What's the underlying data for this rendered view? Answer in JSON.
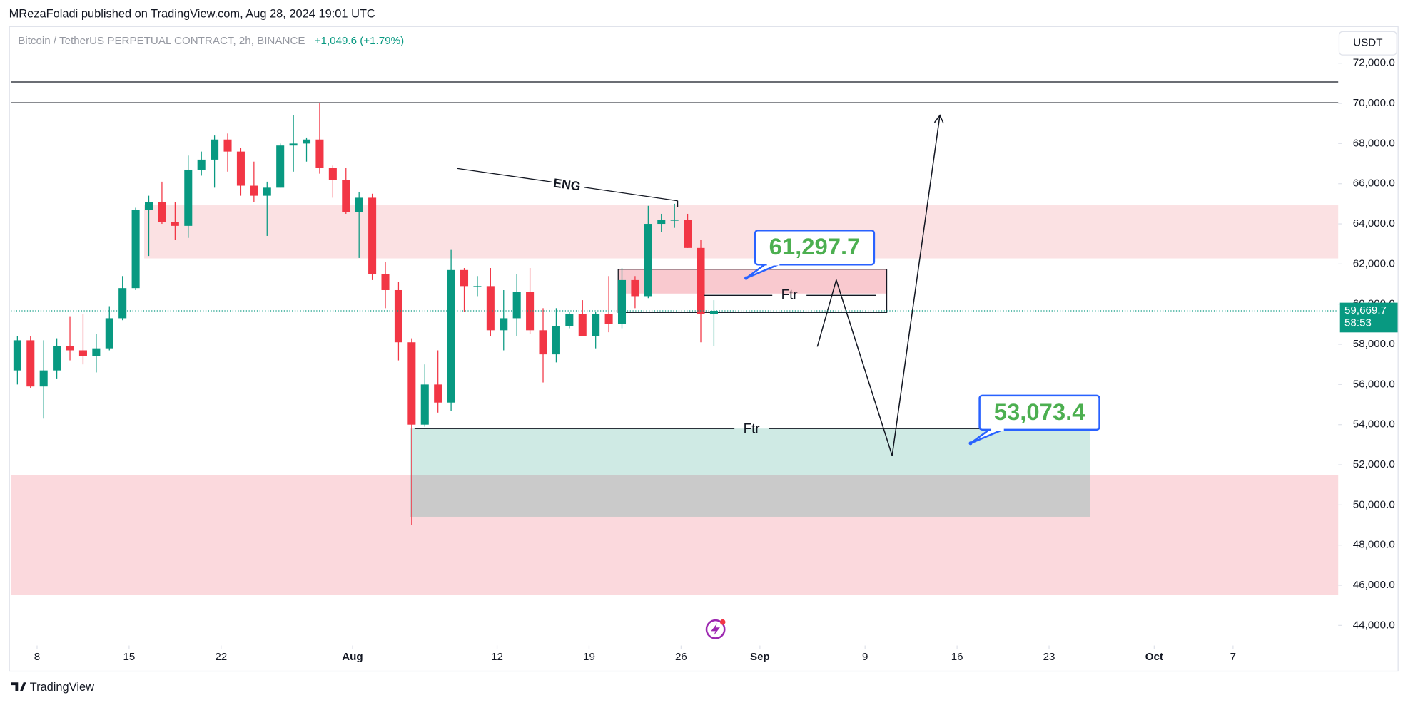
{
  "header": {
    "publisher": "MRezaFoladi published on TradingView.com, Aug 28, 2024 19:01 UTC"
  },
  "chart_data": {
    "type": "candlestick",
    "symbol": "Bitcoin / TetherUS PERPETUAL CONTRACT, 2h, BINANCE",
    "change": "+1,049.6 (+1.79%)",
    "currency": "USDT",
    "up_color": "#089981",
    "down_color": "#f23645",
    "x": [
      "2024-07-06",
      "2024-07-07",
      "2024-07-08",
      "2024-07-09",
      "2024-07-10",
      "2024-07-11",
      "2024-07-12",
      "2024-07-13",
      "2024-07-14",
      "2024-07-15",
      "2024-07-16",
      "2024-07-17",
      "2024-07-18",
      "2024-07-19",
      "2024-07-20",
      "2024-07-21",
      "2024-07-22",
      "2024-07-23",
      "2024-07-24",
      "2024-07-25",
      "2024-07-26",
      "2024-07-27",
      "2024-07-28",
      "2024-07-29",
      "2024-07-30",
      "2024-07-31",
      "2024-08-01",
      "2024-08-02",
      "2024-08-03",
      "2024-08-04",
      "2024-08-05",
      "2024-08-06",
      "2024-08-07",
      "2024-08-08",
      "2024-08-09",
      "2024-08-10",
      "2024-08-11",
      "2024-08-12",
      "2024-08-13",
      "2024-08-14",
      "2024-08-15",
      "2024-08-16",
      "2024-08-17",
      "2024-08-18",
      "2024-08-19",
      "2024-08-20",
      "2024-08-21",
      "2024-08-22",
      "2024-08-23",
      "2024-08-24",
      "2024-08-25",
      "2024-08-26",
      "2024-08-27",
      "2024-08-28"
    ],
    "open": [
      56700,
      58200,
      55900,
      56700,
      57900,
      57700,
      57400,
      57800,
      59300,
      60800,
      64700,
      65100,
      64100,
      63900,
      66700,
      67200,
      68200,
      67600,
      65900,
      65400,
      65800,
      67900,
      68000,
      68200,
      66800,
      66200,
      64600,
      65300,
      61500,
      60700,
      58100,
      54000,
      56000,
      55100,
      61700,
      60900,
      60900,
      58700,
      59300,
      60600,
      58700,
      57500,
      58900,
      59500,
      58400,
      59500,
      59000,
      61200,
      60400,
      64000,
      64200,
      64200,
      62800,
      59500
    ],
    "high": [
      58400,
      58400,
      58200,
      58300,
      59400,
      59500,
      58500,
      59900,
      61400,
      64800,
      65400,
      66100,
      65100,
      67400,
      67600,
      68400,
      68500,
      67800,
      67100,
      66100,
      68000,
      69400,
      68300,
      70000,
      66900,
      66800,
      65600,
      65500,
      62100,
      61100,
      58300,
      57000,
      57700,
      62700,
      61800,
      61400,
      61800,
      60700,
      61500,
      61800,
      59800,
      59800,
      59600,
      60200,
      59600,
      61400,
      61800,
      61400,
      64900,
      64500,
      65000,
      64500,
      63200,
      60200
    ],
    "low": [
      56000,
      55800,
      54300,
      56300,
      57200,
      57000,
      56600,
      57700,
      59200,
      60700,
      62400,
      64000,
      63200,
      63300,
      66400,
      65800,
      66600,
      65400,
      65100,
      63400,
      65800,
      66600,
      67100,
      66500,
      65300,
      64500,
      62300,
      61200,
      59800,
      57200,
      49000,
      53900,
      54600,
      54700,
      59600,
      60400,
      58400,
      57700,
      58400,
      58500,
      56100,
      57100,
      58800,
      58400,
      57800,
      58600,
      58800,
      59800,
      60300,
      63600,
      63800,
      62800,
      58100,
      57900
    ],
    "close": [
      58200,
      55900,
      56700,
      57900,
      57700,
      57400,
      57800,
      59300,
      60800,
      64700,
      65100,
      64100,
      63900,
      66700,
      67200,
      68200,
      67600,
      65900,
      65400,
      65800,
      67900,
      68000,
      68200,
      66800,
      66200,
      64600,
      65300,
      61500,
      60700,
      58100,
      54000,
      56000,
      55100,
      61700,
      60900,
      60900,
      58700,
      59300,
      60600,
      58700,
      57500,
      58900,
      59500,
      58400,
      59500,
      59000,
      61200,
      60400,
      64000,
      64200,
      64200,
      62800,
      59500,
      59670
    ],
    "xlim": [
      "2024-07-06",
      "2024-10-15"
    ],
    "xticks": [
      {
        "value": "2024-07-08",
        "label": "8"
      },
      {
        "value": "2024-07-15",
        "label": "15"
      },
      {
        "value": "2024-07-22",
        "label": "22"
      },
      {
        "value": "2024-08-01",
        "label": "Aug"
      },
      {
        "value": "2024-08-12",
        "label": "12"
      },
      {
        "value": "2024-08-19",
        "label": "19"
      },
      {
        "value": "2024-08-26",
        "label": "26"
      },
      {
        "value": "2024-09-01",
        "label": "Sep"
      },
      {
        "value": "2024-09-09",
        "label": "9"
      },
      {
        "value": "2024-09-16",
        "label": "16"
      },
      {
        "value": "2024-09-23",
        "label": "23"
      },
      {
        "value": "2024-10-01",
        "label": "Oct"
      },
      {
        "value": "2024-10-07",
        "label": "7"
      }
    ],
    "ylim": [
      43000,
      73800
    ],
    "yticks": [
      {
        "value": 44000,
        "label": "44,000.0"
      },
      {
        "value": 46000,
        "label": "46,000.0"
      },
      {
        "value": 48000,
        "label": "48,000.0"
      },
      {
        "value": 50000,
        "label": "50,000.0"
      },
      {
        "value": 52000,
        "label": "52,000.0"
      },
      {
        "value": 54000,
        "label": "54,000.0"
      },
      {
        "value": 56000,
        "label": "56,000.0"
      },
      {
        "value": 58000,
        "label": "58,000.0"
      },
      {
        "value": 60000,
        "label": "60,000.0"
      },
      {
        "value": 62000,
        "label": "62,000.0"
      },
      {
        "value": 64000,
        "label": "64,000.0"
      },
      {
        "value": 66000,
        "label": "66,000.0"
      },
      {
        "value": 68000,
        "label": "68,000.0"
      },
      {
        "value": 70000,
        "label": "70,000.0"
      },
      {
        "value": 72000,
        "label": "72,000.0"
      }
    ],
    "last_price": {
      "value": 59669.7,
      "label": "59,669.7"
    },
    "countdown": "58:53",
    "annotations": {
      "eng": "ENG",
      "ftr_upper": "Ftr",
      "ftr_lower": "Ftr",
      "target_upper": {
        "value": 61297.7,
        "label": "61,297.7"
      },
      "target_lower": {
        "value": 53073.4,
        "label": "53,073.4"
      }
    }
  },
  "footer": {
    "brand": "TradingView"
  }
}
